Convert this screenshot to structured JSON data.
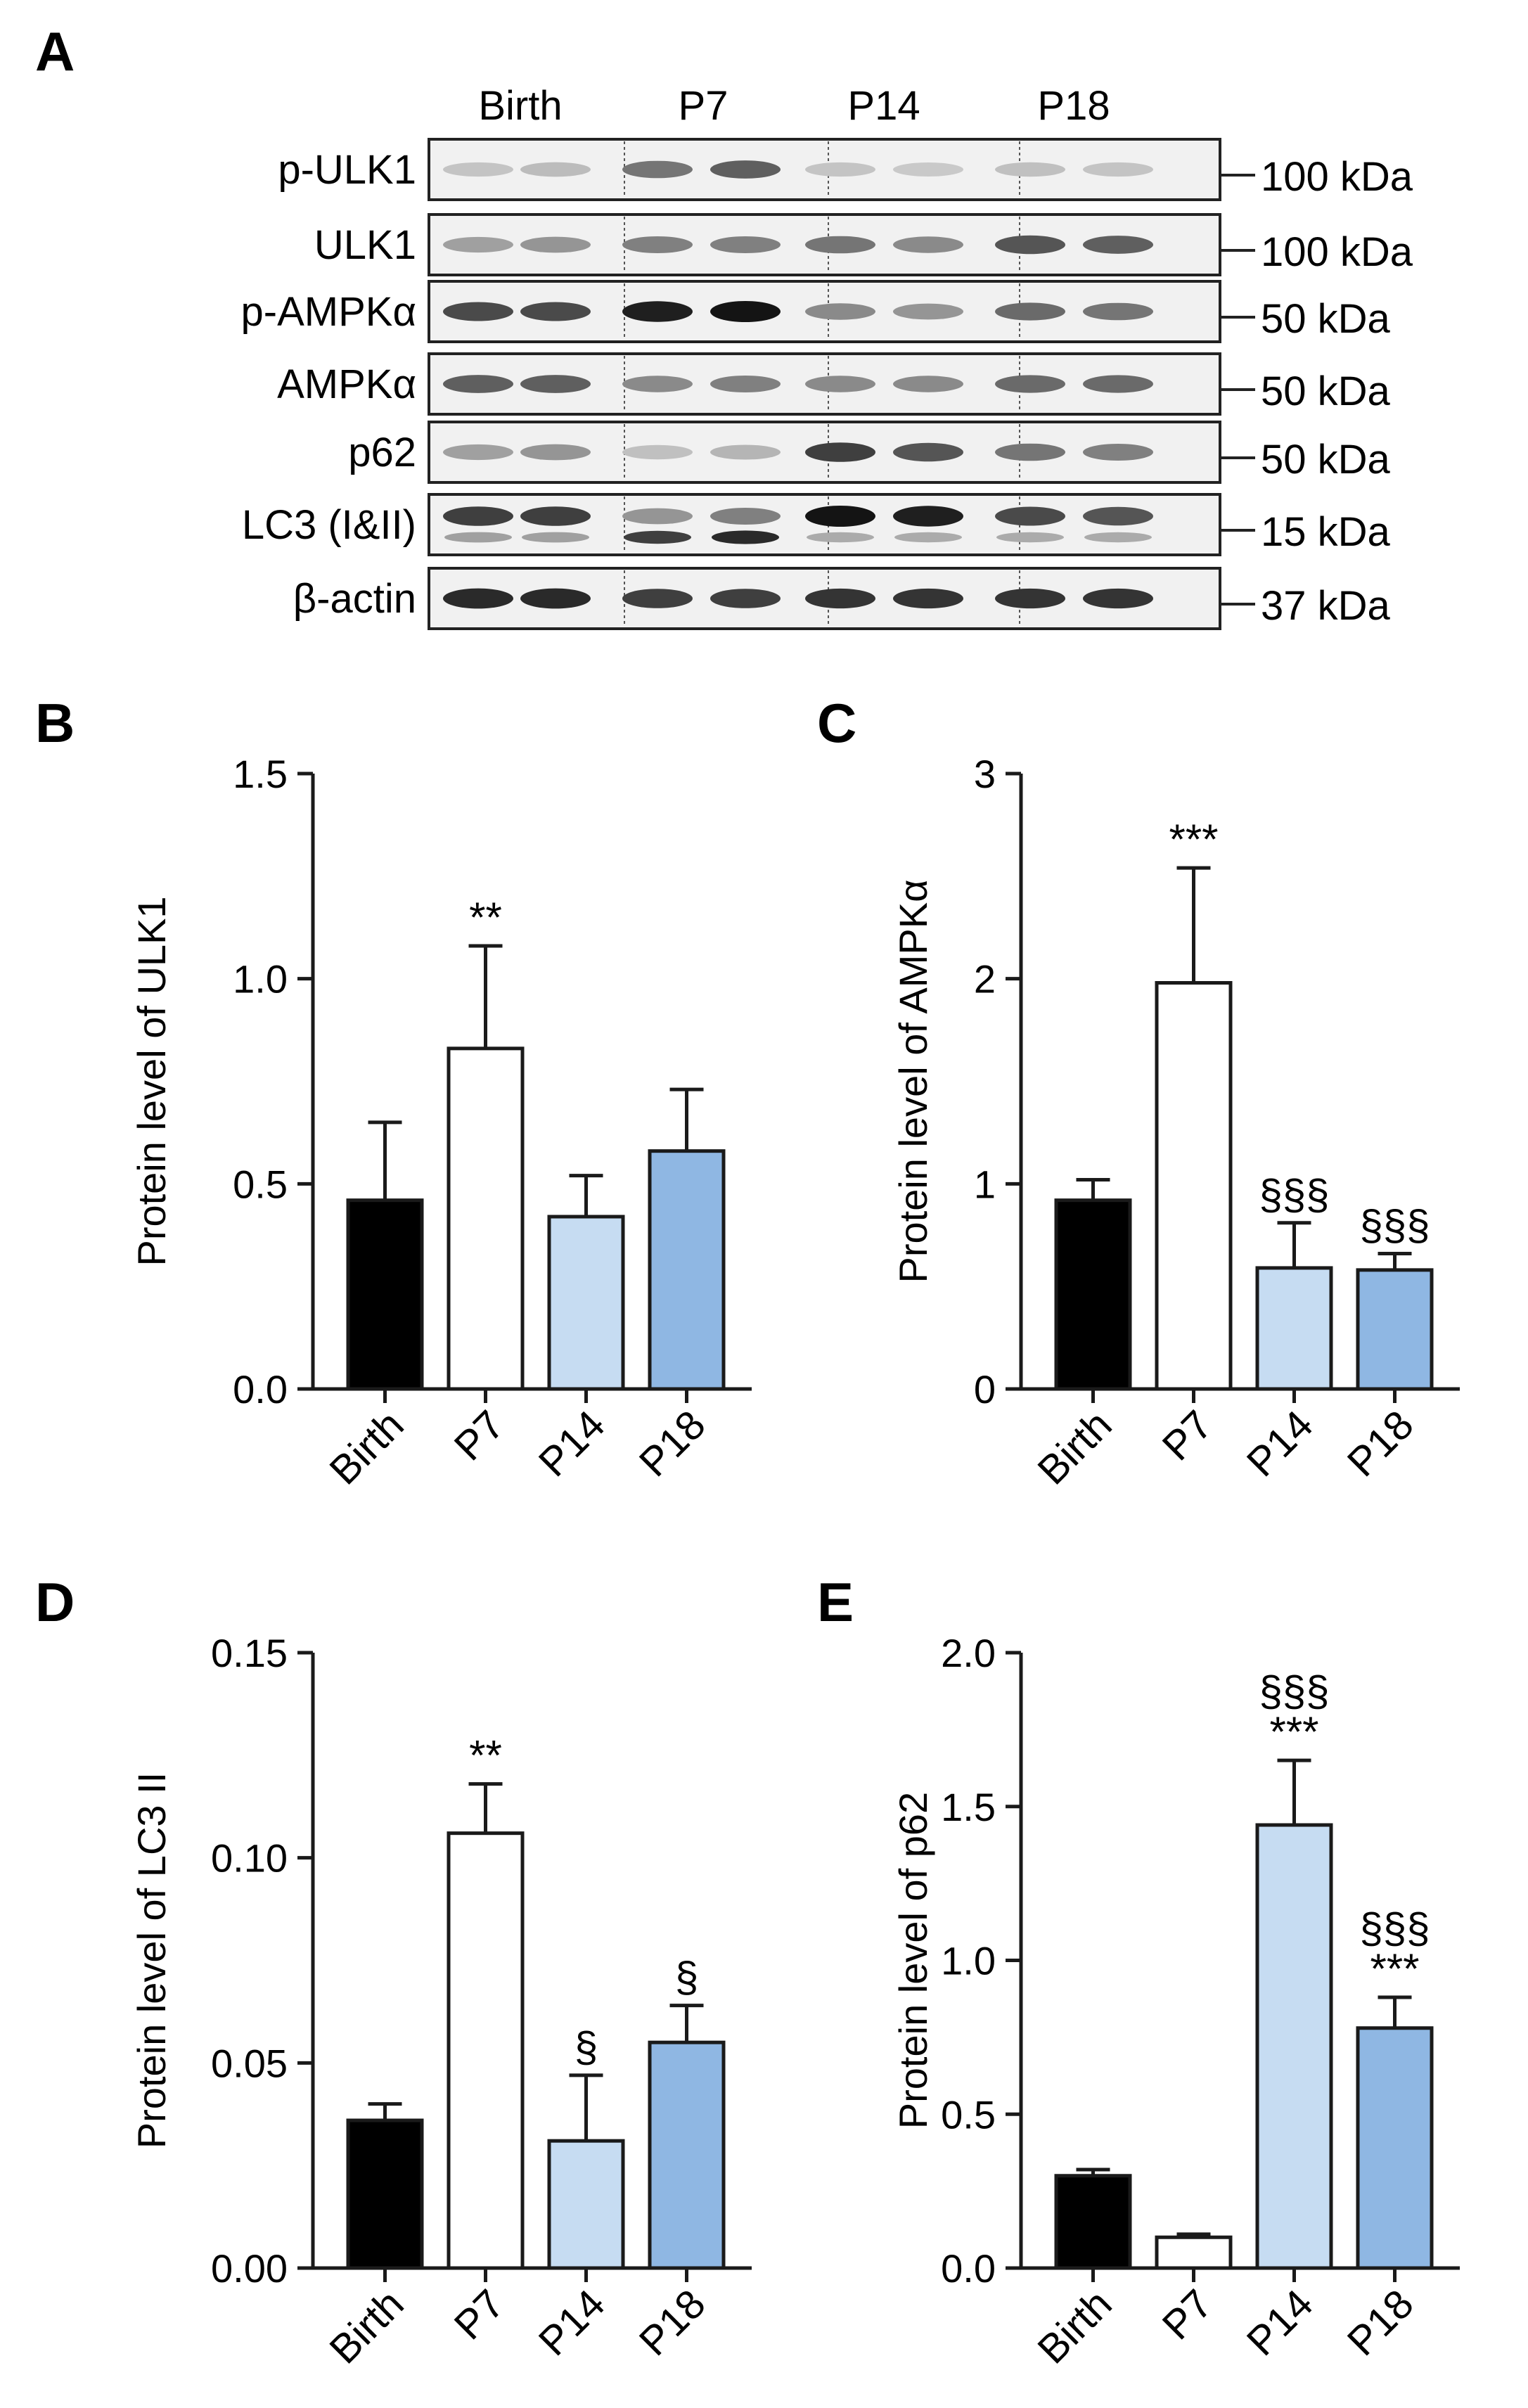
{
  "panels": {
    "A": "A",
    "B": "B",
    "C": "C",
    "D": "D",
    "E": "E"
  },
  "blot": {
    "lanes": [
      "Birth",
      "P7",
      "P14",
      "P18"
    ],
    "rows": [
      {
        "label": "p-ULK1",
        "kda": "100 kDa"
      },
      {
        "label": "ULK1",
        "kda": "100 kDa"
      },
      {
        "label": "p-AMPKα",
        "kda": "50 kDa"
      },
      {
        "label": "AMPKα",
        "kda": "50 kDa"
      },
      {
        "label": "p62",
        "kda": "50 kDa"
      },
      {
        "label": "LC3 (I&II)",
        "kda": "15 kDa"
      },
      {
        "label": "β-actin",
        "kda": "37 kDa"
      }
    ]
  },
  "colors": {
    "Birth": "#000000",
    "P7": "#ffffff",
    "P14": "#c6dcf2",
    "P18": "#8fb7e3"
  },
  "chart_data": [
    {
      "panel": "B",
      "type": "bar",
      "categories": [
        "Birth",
        "P7",
        "P14",
        "P18"
      ],
      "values": [
        0.46,
        0.83,
        0.42,
        0.58
      ],
      "errors": [
        0.19,
        0.25,
        0.1,
        0.15
      ],
      "annotations": [
        [],
        [
          "**"
        ],
        [],
        []
      ],
      "ylabel": "Protein level of ULK1",
      "ylim": [
        0,
        1.5
      ],
      "ticks": [
        0.0,
        0.5,
        1.0,
        1.5
      ],
      "tick_labels": [
        "0.0",
        "0.5",
        "1.0",
        "1.5"
      ]
    },
    {
      "panel": "C",
      "type": "bar",
      "categories": [
        "Birth",
        "P7",
        "P14",
        "P18"
      ],
      "values": [
        0.92,
        1.98,
        0.59,
        0.58
      ],
      "errors": [
        0.1,
        0.56,
        0.22,
        0.08
      ],
      "annotations": [
        [],
        [
          "***"
        ],
        [
          "§§§"
        ],
        [
          "§§§"
        ]
      ],
      "ylabel": "Protein level of AMPKα",
      "ylim": [
        0,
        3
      ],
      "ticks": [
        0,
        1,
        2,
        3
      ],
      "tick_labels": [
        "0",
        "1",
        "2",
        "3"
      ]
    },
    {
      "panel": "D",
      "type": "bar",
      "categories": [
        "Birth",
        "P7",
        "P14",
        "P18"
      ],
      "values": [
        0.036,
        0.106,
        0.031,
        0.055
      ],
      "errors": [
        0.004,
        0.012,
        0.016,
        0.009
      ],
      "annotations": [
        [],
        [
          "**"
        ],
        [
          "§"
        ],
        [
          "§"
        ]
      ],
      "ylabel": "Protein level of LC3 II",
      "ylim": [
        0,
        0.15
      ],
      "ticks": [
        0.0,
        0.05,
        0.1,
        0.15
      ],
      "tick_labels": [
        "0.00",
        "0.05",
        "0.10",
        "0.15"
      ]
    },
    {
      "panel": "E",
      "type": "bar",
      "categories": [
        "Birth",
        "P7",
        "P14",
        "P18"
      ],
      "values": [
        0.3,
        0.1,
        1.44,
        0.78
      ],
      "errors": [
        0.02,
        0.01,
        0.21,
        0.1
      ],
      "annotations": [
        [],
        [],
        [
          "§§§",
          "***"
        ],
        [
          "§§§",
          "***"
        ]
      ],
      "ylabel": "Protein level of p62",
      "ylim": [
        0,
        2.0
      ],
      "ticks": [
        0.0,
        0.5,
        1.0,
        1.5,
        2.0
      ],
      "tick_labels": [
        "0.0",
        "0.5",
        "1.0",
        "1.5",
        "2.0"
      ]
    }
  ]
}
